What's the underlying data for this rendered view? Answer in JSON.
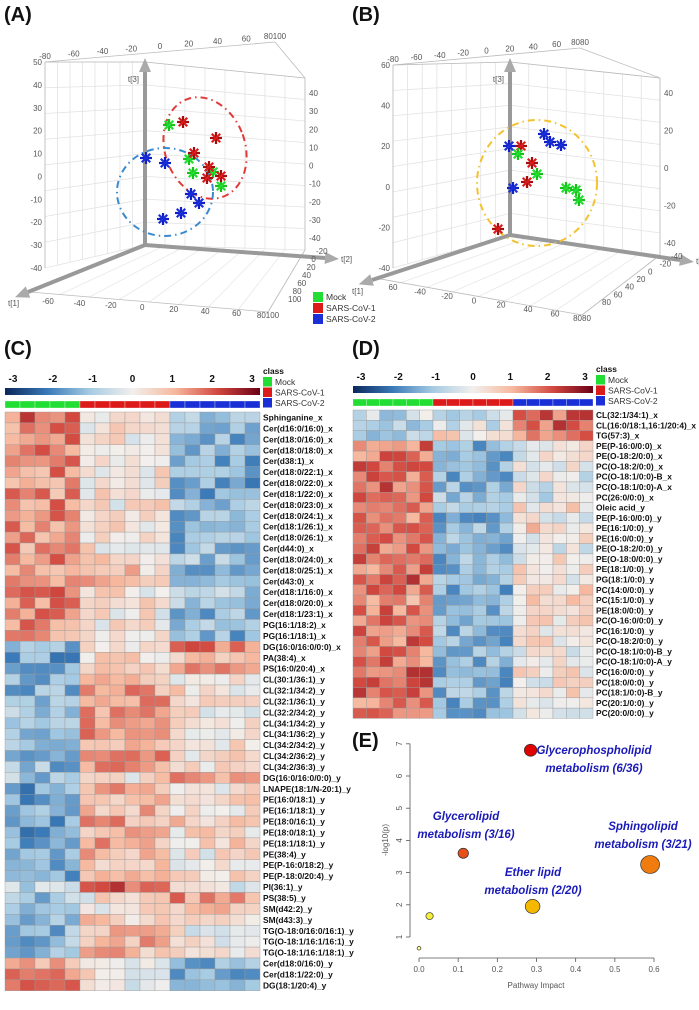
{
  "panels": {
    "a": "(A)",
    "b": "(B)",
    "c": "(C)",
    "d": "(D)",
    "e": "(E)"
  },
  "classes": {
    "title": "class",
    "items": [
      {
        "name": "Mock",
        "color": "#22dd33"
      },
      {
        "name": "SARS-CoV-1",
        "color": "#dd1a1a"
      },
      {
        "name": "SARS-CoV-2",
        "color": "#1a2fd6"
      }
    ]
  },
  "chart_data": [
    {
      "id": "A",
      "type": "scatter3d",
      "axis_labels": {
        "x": "t[1]",
        "y": "t[2]",
        "z": "t[3]"
      },
      "ticks": {
        "top": [
          "-80",
          "-60",
          "-40",
          "-20",
          "0",
          "20",
          "40",
          "60",
          "80100"
        ],
        "left": [
          "50",
          "40",
          "30",
          "20",
          "10",
          "0",
          "-10",
          "-20",
          "-30",
          "-40"
        ],
        "right": [
          "40",
          "30",
          "20",
          "10",
          "0",
          "-10",
          "-20",
          "-30",
          "-40"
        ],
        "bottom": [
          "-60",
          "-40",
          "-20",
          "0",
          "20",
          "40",
          "60",
          "80100"
        ],
        "depth": [
          "100",
          "80",
          "60",
          "40",
          "20",
          "0",
          "-20"
        ]
      },
      "groups": [
        {
          "name": "Mock",
          "count": 5
        },
        {
          "name": "SARS-CoV-1",
          "count": 6
        },
        {
          "name": "SARS-CoV-2",
          "count": 6
        }
      ],
      "ellipses": [
        {
          "color": "#e03a3a"
        },
        {
          "color": "#3a8ad0"
        }
      ],
      "legend": "bottom-right"
    },
    {
      "id": "B",
      "type": "scatter3d",
      "axis_labels": {
        "x": "t[1]",
        "y": "t[2]",
        "z": "t[3]"
      },
      "ticks": {
        "top": [
          "-80",
          "-60",
          "-40",
          "-20",
          "0",
          "20",
          "40",
          "60",
          "8080"
        ],
        "left": [
          "60",
          "40",
          "20",
          "0",
          "-20",
          "-40"
        ],
        "right": [
          "40",
          "20",
          "0",
          "-20",
          "-40"
        ],
        "bottom": [
          "60",
          "-40",
          "-20",
          "0",
          "20",
          "40",
          "60",
          "8080"
        ],
        "depth": [
          "80",
          "60",
          "40",
          "20",
          "0",
          "-20",
          "-40"
        ]
      },
      "groups": [
        {
          "name": "Mock",
          "count": 5
        },
        {
          "name": "SARS-CoV-1",
          "count": 4
        },
        {
          "name": "SARS-CoV-2",
          "count": 5
        }
      ],
      "ellipses": [
        {
          "color": "#f2c230"
        }
      ]
    },
    {
      "id": "C",
      "type": "heatmap",
      "color_scale": {
        "ticks": [
          "-3",
          "-2",
          "-1",
          "0",
          "1",
          "2",
          "3"
        ],
        "range": [
          -3,
          3
        ]
      },
      "columns_per_group": [
        5,
        6,
        6
      ],
      "note": "",
      "rows": [
        {
          "label": "Sphinganine_x",
          "group_means": [
            1.7,
            0.1,
            -1.0
          ]
        },
        {
          "label": "Cer(d16:0/16:0)_x",
          "group_means": [
            1.4,
            0.2,
            -1.3
          ]
        },
        {
          "label": "Cer(d18:0/16:0)_x",
          "group_means": [
            1.4,
            0.2,
            -1.3
          ]
        },
        {
          "label": "Cer(d18:0/18:0)_x",
          "group_means": [
            1.4,
            0.2,
            -1.3
          ]
        },
        {
          "label": "Cer(d38:1)_x",
          "group_means": [
            1.3,
            0.2,
            -1.4
          ]
        },
        {
          "label": "Cer(d18:0/22:1)_x",
          "group_means": [
            1.3,
            0.2,
            -1.4
          ]
        },
        {
          "label": "Cer(d18:0/22:0)_x",
          "group_means": [
            1.4,
            0.1,
            -1.4
          ]
        },
        {
          "label": "Cer(d18:1/22:0)_x",
          "group_means": [
            1.3,
            0.2,
            -1.4
          ]
        },
        {
          "label": "Cer(d18:0/23:0)_x",
          "group_means": [
            1.4,
            0.2,
            -1.2
          ]
        },
        {
          "label": "Cer(d18:0/24:1)_x",
          "group_means": [
            1.4,
            0.3,
            -1.4
          ]
        },
        {
          "label": "Cer(d18:1/26:1)_x",
          "group_means": [
            1.3,
            0.2,
            -1.3
          ]
        },
        {
          "label": "Cer(d18:0/26:1)_x",
          "group_means": [
            1.4,
            0.3,
            -1.3
          ]
        },
        {
          "label": "Cer(d44:0)_x",
          "group_means": [
            1.3,
            0.3,
            -1.2
          ]
        },
        {
          "label": "Cer(d18:0/24:0)_x",
          "group_means": [
            1.3,
            0.6,
            -1.1
          ]
        },
        {
          "label": "Cer(d18:0/25:1)_x",
          "group_means": [
            1.3,
            0.6,
            -1.1
          ]
        },
        {
          "label": "Cer(d43:0)_x",
          "group_means": [
            1.0,
            0.8,
            -1.3
          ]
        },
        {
          "label": "Cer(d18:1/16:0)_x",
          "group_means": [
            1.4,
            0.2,
            -1.0
          ]
        },
        {
          "label": "Cer(d18:0/20:0)_x",
          "group_means": [
            1.4,
            0.3,
            -1.0
          ]
        },
        {
          "label": "Cer(d18:1/23:1)_x",
          "group_means": [
            1.4,
            0.2,
            -1.2
          ]
        },
        {
          "label": "PG(16:1/18:2)_x",
          "group_means": [
            1.3,
            0.3,
            -1.2
          ]
        },
        {
          "label": "PG(16:1/18:1)_x",
          "group_means": [
            1.3,
            0.3,
            -1.3
          ]
        },
        {
          "label": "DG(16:0/16:0/0:0)_x",
          "group_means": [
            -1.2,
            0.0,
            1.5
          ]
        },
        {
          "label": "PA(38:4)_x",
          "group_means": [
            -1.5,
            0.3,
            1.0
          ]
        },
        {
          "label": "PS(16:0/20:4)_x",
          "group_means": [
            -1.2,
            0.5,
            1.0
          ]
        },
        {
          "label": "CL(30:1/36:1)_y",
          "group_means": [
            -1.2,
            1.1,
            0.3
          ]
        },
        {
          "label": "CL(32:1/34:2)_y",
          "group_means": [
            -1.2,
            1.2,
            0.3
          ]
        },
        {
          "label": "CL(32:1/36:1)_y",
          "group_means": [
            -1.2,
            1.2,
            0.2
          ]
        },
        {
          "label": "CL(32:2/34:2)_y",
          "group_means": [
            -1.1,
            1.2,
            0.2
          ]
        },
        {
          "label": "CL(34:1/34:2)_y",
          "group_means": [
            -1.2,
            1.3,
            0.3
          ]
        },
        {
          "label": "CL(34:1/36:2)_y",
          "group_means": [
            -1.2,
            1.2,
            0.3
          ]
        },
        {
          "label": "CL(34:2/34:2)_y",
          "group_means": [
            -1.2,
            1.2,
            0.3
          ]
        },
        {
          "label": "CL(34:2/36:2)_y",
          "group_means": [
            -1.2,
            1.3,
            0.3
          ]
        },
        {
          "label": "CL(34:2/36:3)_y",
          "group_means": [
            -1.2,
            1.2,
            0.3
          ]
        },
        {
          "label": "DG(16:0/16:0/0:0)_y",
          "group_means": [
            -1.0,
            0.3,
            1.2
          ]
        },
        {
          "label": "LNAPE(18:1/N-20:1)_y",
          "group_means": [
            -1.5,
            1.0,
            0.3
          ]
        },
        {
          "label": "PE(16:0/18:1)_y",
          "group_means": [
            -1.5,
            1.0,
            0.3
          ]
        },
        {
          "label": "PE(16:1/18:1)_y",
          "group_means": [
            -1.5,
            1.0,
            0.3
          ]
        },
        {
          "label": "PE(18:0/16:1)_y",
          "group_means": [
            -1.4,
            1.1,
            0.5
          ]
        },
        {
          "label": "PE(18:0/18:1)_y",
          "group_means": [
            -1.5,
            1.0,
            0.3
          ]
        },
        {
          "label": "PE(18:1/18:1)_y",
          "group_means": [
            -1.5,
            1.0,
            0.4
          ]
        },
        {
          "label": "PE(38:4)_y",
          "group_means": [
            -1.0,
            1.0,
            0.2
          ]
        },
        {
          "label": "PE(P-16:0/18:2)_y",
          "group_means": [
            -1.5,
            1.0,
            0.2
          ]
        },
        {
          "label": "PE(P-18:0/20:4)_y",
          "group_means": [
            -1.5,
            1.0,
            0.2
          ]
        },
        {
          "label": "PI(36:1)_y",
          "group_means": [
            -0.8,
            1.8,
            0.0
          ]
        },
        {
          "label": "PS(38:5)_y",
          "group_means": [
            -1.0,
            0.2,
            1.3
          ]
        },
        {
          "label": "SM(d42:2)_y",
          "group_means": [
            -0.8,
            0.3,
            1.0
          ]
        },
        {
          "label": "SM(d43:3)_y",
          "group_means": [
            -1.0,
            0.5,
            0.7
          ]
        },
        {
          "label": "TG(O-18:0/16:0/16:1)_y",
          "group_means": [
            -1.2,
            1.0,
            0.0
          ]
        },
        {
          "label": "TG(O-18:1/16:1/16:1)_y",
          "group_means": [
            -1.2,
            1.0,
            0.0
          ]
        },
        {
          "label": "TG(O-18:1/16:1/18:1)_y",
          "group_means": [
            -1.2,
            1.0,
            0.0
          ]
        },
        {
          "label": "Cer(d18:0/16:0)_y",
          "group_means": [
            1.3,
            0.1,
            -1.2
          ]
        },
        {
          "label": "Cer(d18:1/22:0)_y",
          "group_means": [
            1.3,
            0.2,
            -1.2
          ]
        },
        {
          "label": "DG(18:1/20:4)_y",
          "group_means": [
            1.3,
            0.0,
            -1.3
          ]
        }
      ]
    },
    {
      "id": "D",
      "type": "heatmap",
      "color_scale": {
        "ticks": [
          "-3",
          "-2",
          "-1",
          "0",
          "1",
          "2",
          "3"
        ],
        "range": [
          -3,
          3
        ]
      },
      "columns_per_group": [
        6,
        6,
        6
      ],
      "rows": [
        {
          "label": "CL(32:1/34:1)_x",
          "group_means": [
            -0.6,
            -0.4,
            1.8
          ]
        },
        {
          "label": "CL(16:0/18:1,16:1/20:4)_x",
          "group_means": [
            -0.7,
            -0.3,
            1.8
          ]
        },
        {
          "label": "TG(57:3)_x",
          "group_means": [
            -1.1,
            0.3,
            1.5
          ]
        },
        {
          "label": "PE(P-16:0/0:0)_x",
          "group_means": [
            1.6,
            -1.3,
            -0.1
          ]
        },
        {
          "label": "PE(O-18:2/0:0)_x",
          "group_means": [
            1.6,
            -1.3,
            -0.1
          ]
        },
        {
          "label": "PC(O-18:2/0:0)_x",
          "group_means": [
            1.7,
            -1.3,
            0.0
          ]
        },
        {
          "label": "PC(O-18:1/0:0)-B_x",
          "group_means": [
            1.6,
            -1.2,
            -0.2
          ]
        },
        {
          "label": "PC(O-18:1/0:0)-A_x",
          "group_means": [
            1.7,
            -1.3,
            -0.2
          ]
        },
        {
          "label": "PC(26:0/0:0)_x",
          "group_means": [
            1.5,
            -0.8,
            -0.4
          ]
        },
        {
          "label": "Oleic acid_y",
          "group_means": [
            1.4,
            -1.2,
            0.3
          ]
        },
        {
          "label": "PE(P-16:0/0:0)_y",
          "group_means": [
            1.6,
            -1.3,
            0.0
          ]
        },
        {
          "label": "PE(16:1/0:0)_y",
          "group_means": [
            1.3,
            -1.3,
            0.5
          ]
        },
        {
          "label": "PE(16:0/0:0)_y",
          "group_means": [
            1.5,
            -1.3,
            0.2
          ]
        },
        {
          "label": "PE(O-18:2/0:0)_y",
          "group_means": [
            1.6,
            -1.3,
            -0.2
          ]
        },
        {
          "label": "PE(O-18:0/0:0)_y",
          "group_means": [
            1.6,
            -1.2,
            0.1
          ]
        },
        {
          "label": "PE(18:1/0:0)_y",
          "group_means": [
            1.5,
            -1.4,
            0.3
          ]
        },
        {
          "label": "PG(18:1/0:0)_y",
          "group_means": [
            1.7,
            -1.2,
            0.0
          ]
        },
        {
          "label": "PC(14:0/0:0)_y",
          "group_means": [
            1.5,
            -1.3,
            0.5
          ]
        },
        {
          "label": "PC(15:1/0:0)_y",
          "group_means": [
            1.4,
            -1.3,
            0.4
          ]
        },
        {
          "label": "PE(18:0/0:0)_y",
          "group_means": [
            1.5,
            -1.2,
            0.1
          ]
        },
        {
          "label": "PC(O-16:0/0:0)_y",
          "group_means": [
            1.6,
            -1.2,
            0.2
          ]
        },
        {
          "label": "PC(16:1/0:0)_y",
          "group_means": [
            1.6,
            -1.2,
            0.4
          ]
        },
        {
          "label": "PC(O-18:2/0:0)_y",
          "group_means": [
            1.6,
            -1.3,
            0.1
          ]
        },
        {
          "label": "PC(O-18:1/0:0)-B_y",
          "group_means": [
            1.6,
            -1.3,
            0.1
          ]
        },
        {
          "label": "PC(O-18:1/0:0)-A_y",
          "group_means": [
            1.6,
            -1.3,
            0.1
          ]
        },
        {
          "label": "PC(16:0/0:0)_y",
          "group_means": [
            1.7,
            -1.3,
            0.2
          ]
        },
        {
          "label": "PC(18:0/0:0)_y",
          "group_means": [
            1.7,
            -1.4,
            0.1
          ]
        },
        {
          "label": "PC(18:1/0:0)-B_y",
          "group_means": [
            1.7,
            -1.3,
            0.2
          ]
        },
        {
          "label": "PC(20:1/0:0)_y",
          "group_means": [
            1.6,
            -1.3,
            0.3
          ]
        },
        {
          "label": "PC(20:0/0:0)_y",
          "group_means": [
            1.6,
            -1.2,
            0.0
          ]
        }
      ]
    },
    {
      "id": "E",
      "type": "scatter",
      "xlabel": "Pathway Impact",
      "ylabel": "-log10(p)",
      "xlim": [
        0,
        0.6
      ],
      "ylim": [
        1,
        7
      ],
      "xticks": [
        "0.0",
        "0.1",
        "0.2",
        "0.3",
        "0.4",
        "0.5",
        "0.6"
      ],
      "yticks": [
        "1",
        "2",
        "3",
        "4",
        "5",
        "6",
        "7"
      ],
      "points": [
        {
          "x": 0.0,
          "y": 0.65,
          "size": 1,
          "color": "#ffff99",
          "label": ""
        },
        {
          "x": 0.027,
          "y": 1.65,
          "size": 2,
          "color": "#f5ee3a",
          "label": ""
        },
        {
          "x": 0.113,
          "y": 3.6,
          "size": 3,
          "color": "#e8501a",
          "label": "Glycerolipid metabolism (3/16)"
        },
        {
          "x": 0.285,
          "y": 6.8,
          "size": 3.5,
          "color": "#e00000",
          "label": "Glycerophospholipid metabolism (6/36)"
        },
        {
          "x": 0.29,
          "y": 1.95,
          "size": 4,
          "color": "#f5b800",
          "label": "Ether lipid metabolism (2/20)"
        },
        {
          "x": 0.59,
          "y": 3.25,
          "size": 6,
          "color": "#f07c10",
          "label": "Sphingolipid metabolism (3/21)"
        }
      ],
      "annotations": [
        [
          "Glycerolipid",
          "metabolism (3/16)"
        ],
        [
          "Glycerophospholipid",
          "metabolism (6/36)"
        ],
        [
          "Ether lipid",
          "metabolism (2/20)"
        ],
        [
          "Sphingolipid",
          "metabolism (3/21)"
        ]
      ]
    }
  ]
}
